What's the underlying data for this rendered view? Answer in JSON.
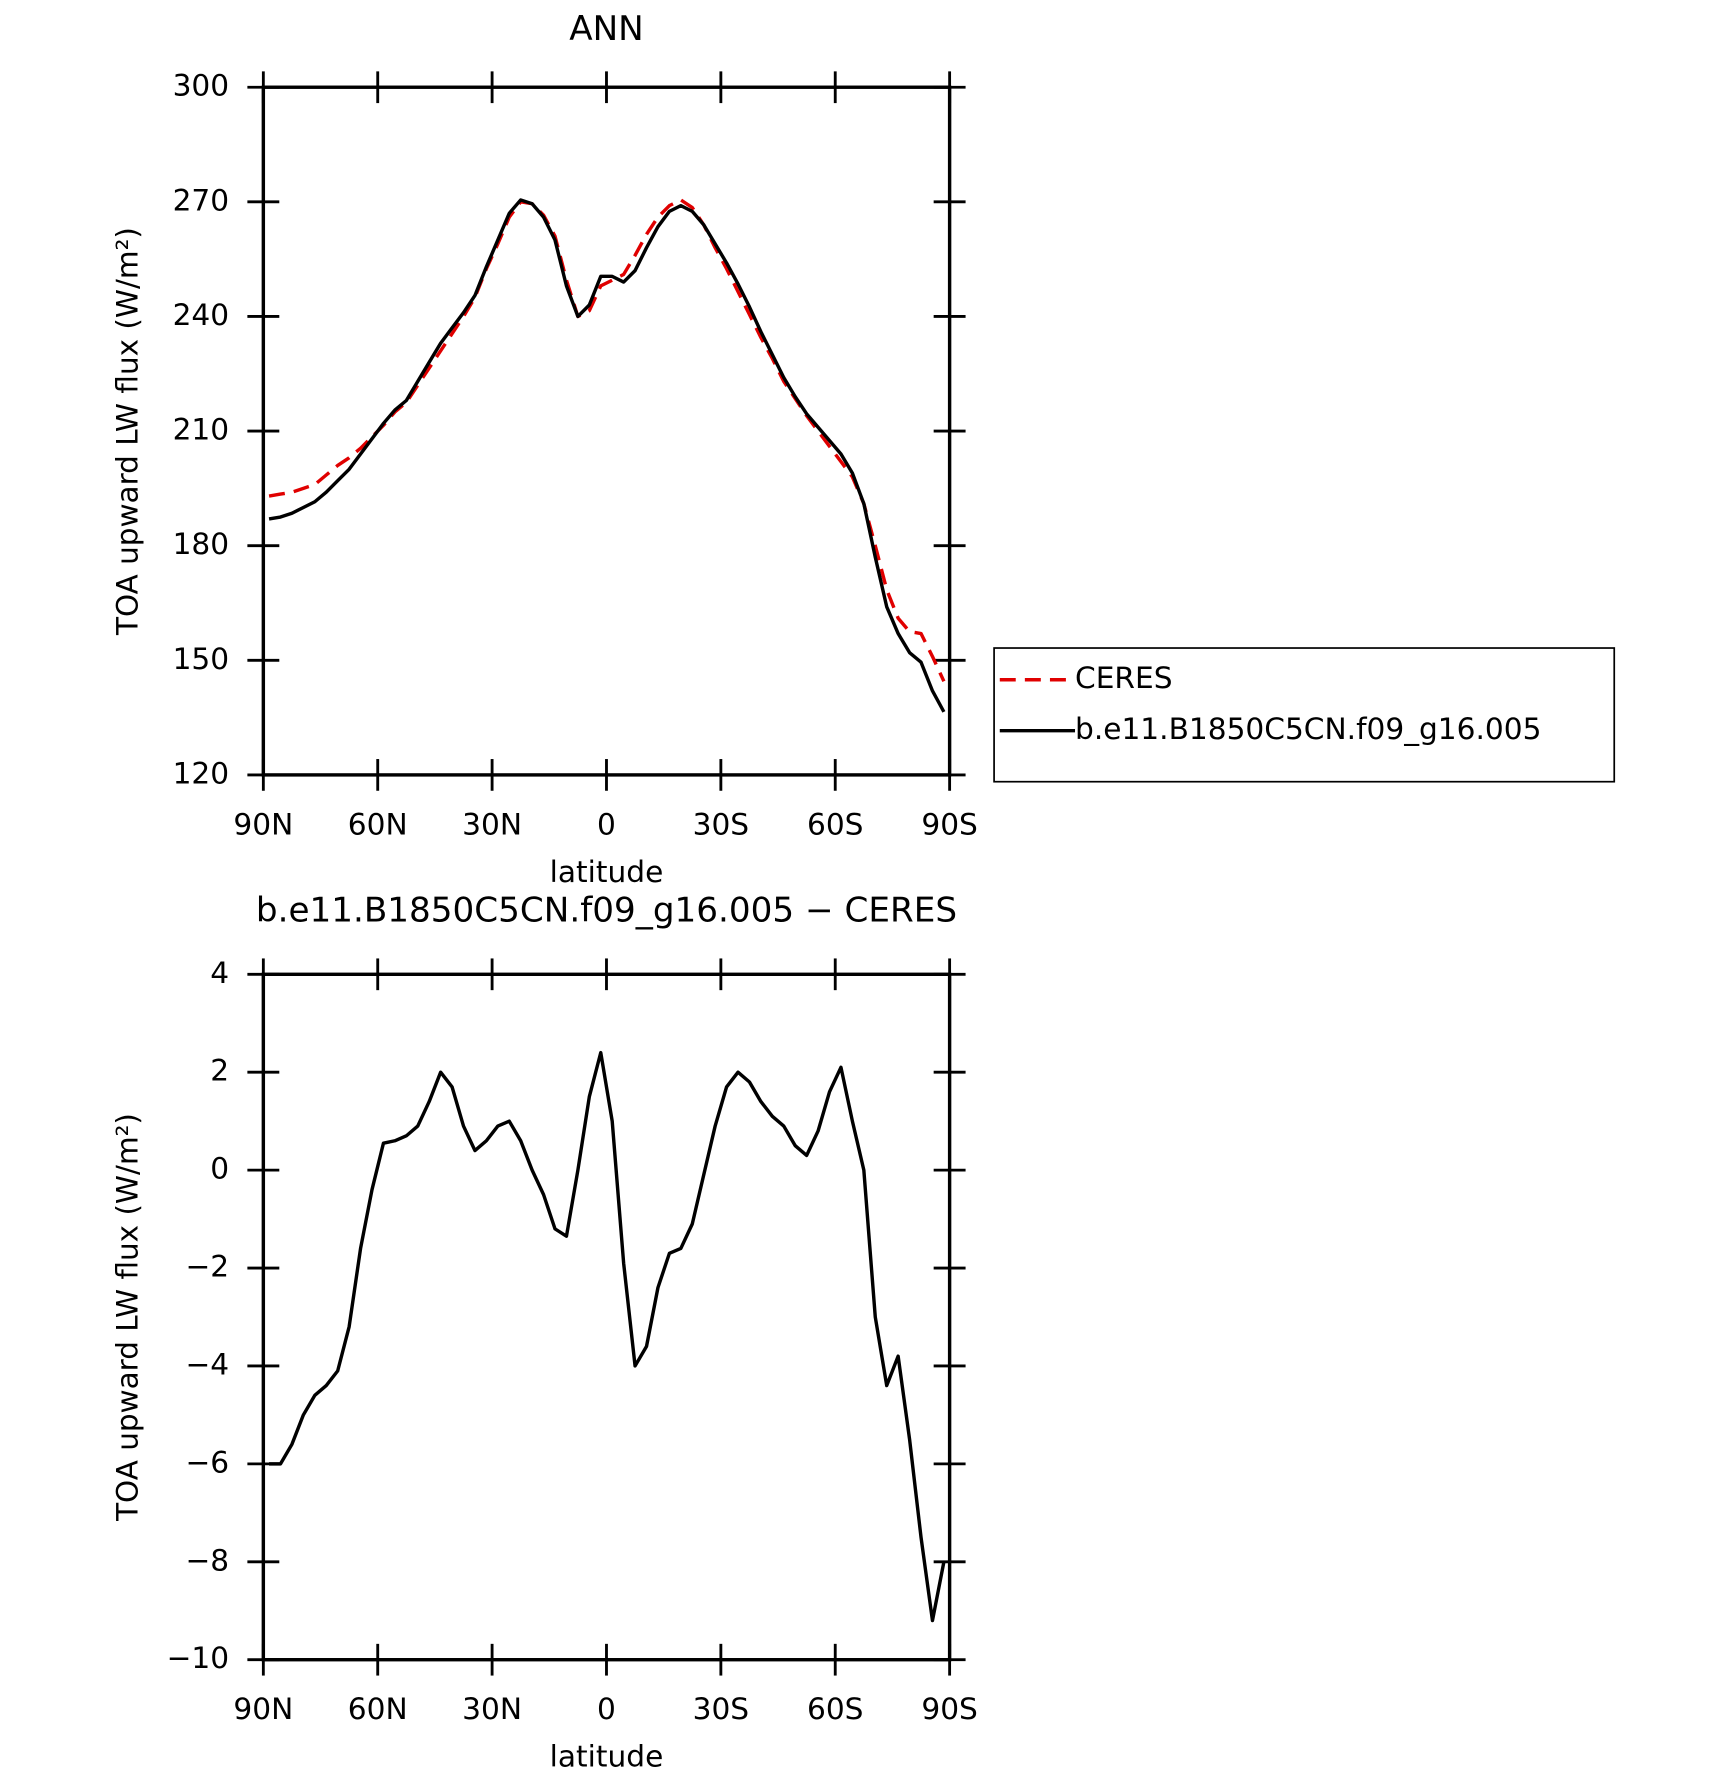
{
  "chart_data": [
    {
      "type": "line",
      "title": "ANN",
      "xlabel": "latitude",
      "ylabel": "TOA upward LW flux (W/m²)",
      "x": [
        88.5,
        85.5,
        82.5,
        79.5,
        76.5,
        73.5,
        70.5,
        67.5,
        64.5,
        61.5,
        58.5,
        55.5,
        52.5,
        49.5,
        46.5,
        43.5,
        40.5,
        37.5,
        34.5,
        31.5,
        28.5,
        25.5,
        22.5,
        19.5,
        16.5,
        13.5,
        10.5,
        7.5,
        4.5,
        1.5,
        -1.5,
        -4.5,
        -7.5,
        -10.5,
        -13.5,
        -16.5,
        -19.5,
        -22.5,
        -25.5,
        -28.5,
        -31.5,
        -34.5,
        -37.5,
        -40.5,
        -43.5,
        -46.5,
        -49.5,
        -52.5,
        -55.5,
        -58.5,
        -61.5,
        -64.5,
        -67.5,
        -70.5,
        -73.5,
        -76.5,
        -79.5,
        -82.5,
        -85.5,
        -88.5
      ],
      "series": [
        {
          "name": "CERES",
          "color": "#e00000",
          "linestyle": "dashed",
          "values": [
            193,
            193.5,
            194,
            195,
            196,
            198.5,
            201,
            203,
            205.5,
            208.5,
            211.5,
            215,
            217.5,
            222,
            226.5,
            231,
            235.5,
            240,
            245,
            252.5,
            259,
            266,
            270,
            269.5,
            266.5,
            261,
            249.5,
            240,
            241.5,
            248,
            249.5,
            251,
            256,
            261.5,
            266,
            269,
            270.5,
            268.5,
            264,
            258,
            252.5,
            246.5,
            240.5,
            234.5,
            229,
            223,
            218.5,
            214,
            210,
            206,
            202,
            198,
            191,
            180,
            168.5,
            161,
            157.5,
            157,
            151,
            144.5
          ]
        },
        {
          "name": "b.e11.B1850C5CN.f09_g16.005",
          "color": "#000000",
          "linestyle": "solid",
          "values": [
            187,
            187.5,
            188.5,
            190,
            191.5,
            194,
            197,
            200,
            204,
            208,
            212,
            215.5,
            218,
            223,
            228,
            233,
            237,
            241,
            245.5,
            253,
            260,
            267,
            270.5,
            269.5,
            266,
            260,
            248,
            240,
            243,
            250.5,
            250.5,
            249,
            252,
            258,
            263.5,
            267.5,
            269,
            267.5,
            264,
            259,
            254,
            248.5,
            242.5,
            236,
            230,
            224,
            219,
            214.5,
            211,
            207.5,
            204,
            199,
            191,
            177,
            164,
            157,
            152,
            149.5,
            142,
            136.5
          ]
        }
      ],
      "xlim": [
        90,
        -90
      ],
      "xticks": [
        {
          "value": 90,
          "label": "90N"
        },
        {
          "value": 60,
          "label": "60N"
        },
        {
          "value": 30,
          "label": "30N"
        },
        0,
        {
          "value": -30,
          "label": "30S"
        },
        {
          "value": -60,
          "label": "60S"
        },
        {
          "value": -90,
          "label": "90S"
        }
      ],
      "ylim": [
        120,
        300
      ],
      "yticks": [
        120,
        150,
        180,
        210,
        240,
        270,
        300
      ],
      "legend": "outside-right"
    },
    {
      "type": "line",
      "title": "b.e11.B1850C5CN.f09_g16.005 − CERES",
      "xlabel": "latitude",
      "ylabel": "TOA upward LW flux (W/m²)",
      "x": [
        88.5,
        85.5,
        82.5,
        79.5,
        76.5,
        73.5,
        70.5,
        67.5,
        64.5,
        61.5,
        58.5,
        55.5,
        52.5,
        49.5,
        46.5,
        43.5,
        40.5,
        37.5,
        34.5,
        31.5,
        28.5,
        25.5,
        22.5,
        19.5,
        16.5,
        13.5,
        10.5,
        7.5,
        4.5,
        1.5,
        -1.5,
        -4.5,
        -7.5,
        -10.5,
        -13.5,
        -16.5,
        -19.5,
        -22.5,
        -25.5,
        -28.5,
        -31.5,
        -34.5,
        -37.5,
        -40.5,
        -43.5,
        -46.5,
        -49.5,
        -52.5,
        -55.5,
        -58.5,
        -61.5,
        -64.5,
        -67.5,
        -70.5,
        -73.5,
        -76.5,
        -79.5,
        -82.5,
        -85.5,
        -88.5
      ],
      "color": "#000000",
      "values": [
        -6.0,
        -6.0,
        -5.6,
        -5.0,
        -4.6,
        -4.4,
        -4.1,
        -3.2,
        -1.6,
        -0.4,
        0.55,
        0.6,
        0.7,
        0.9,
        1.4,
        2.0,
        1.7,
        0.9,
        0.4,
        0.6,
        0.9,
        1.0,
        0.6,
        0.0,
        -0.5,
        -1.2,
        -1.35,
        0.0,
        1.5,
        2.4,
        1.0,
        -1.9,
        -4.0,
        -3.6,
        -2.4,
        -1.7,
        -1.6,
        -1.1,
        -0.1,
        0.9,
        1.7,
        2.0,
        1.8,
        1.4,
        1.1,
        0.9,
        0.5,
        0.3,
        0.8,
        1.6,
        2.1,
        1.0,
        0.0,
        -3.0,
        -4.4,
        -3.8,
        -5.5,
        -7.5,
        -9.2,
        -8.0
      ],
      "xlim": [
        90,
        -90
      ],
      "xticks": [
        {
          "value": 90,
          "label": "90N"
        },
        {
          "value": 60,
          "label": "60N"
        },
        {
          "value": 30,
          "label": "30N"
        },
        0,
        {
          "value": -30,
          "label": "30S"
        },
        {
          "value": -60,
          "label": "60S"
        },
        {
          "value": -90,
          "label": "90S"
        }
      ],
      "ylim": [
        -10,
        4
      ],
      "yticks": [
        {
          "value": -10,
          "label": "−10"
        },
        {
          "value": -8,
          "label": "−8"
        },
        {
          "value": -6,
          "label": "−6"
        },
        {
          "value": -4,
          "label": "−4"
        },
        {
          "value": -2,
          "label": "−2"
        },
        0,
        2,
        4
      ]
    }
  ]
}
